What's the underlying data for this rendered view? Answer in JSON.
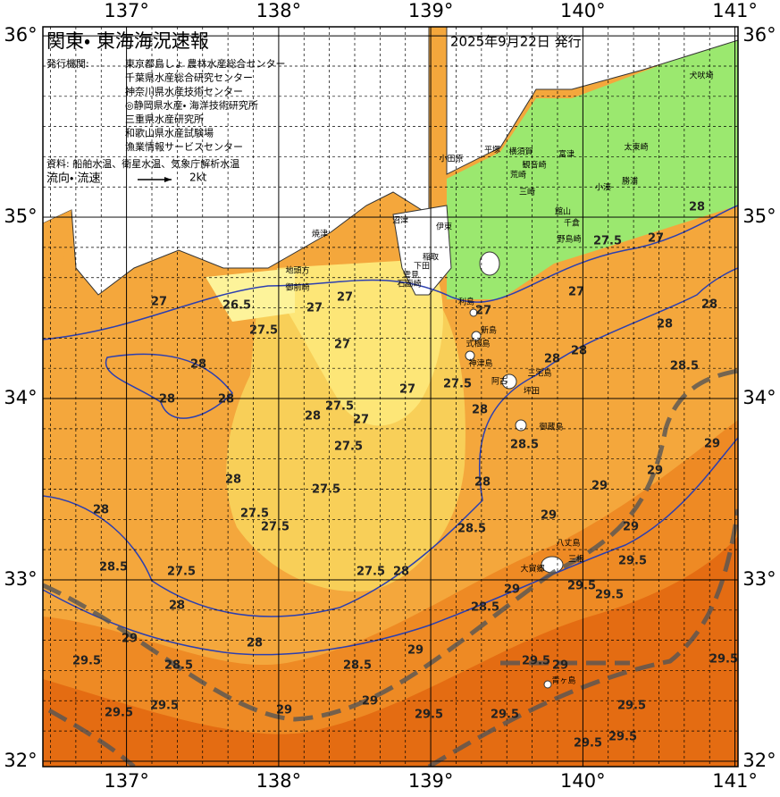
{
  "header": {
    "title": "関東・ 東海海況速報",
    "date": "2025年9月22日 発行",
    "issuer_label": "発行機関:",
    "issuers": [
      "東京都島しょ 農林水産総合センター",
      "千葉県水産総合研究センター",
      "神奈川県水産技術センター",
      "◎静岡県水産・ 海洋技術研究所",
      "三重県水産研究所",
      "和歌山県水産試験場",
      "漁業情報サービスセンター"
    ],
    "source": "資料: 船舶水温、衛星水温、気象庁解析水温",
    "flow_label": "流向・ 流速",
    "flow_scale": "2kt"
  },
  "axes": {
    "lon_range": [
      136.45,
      141.02
    ],
    "lat_range": [
      31.97,
      36.05
    ],
    "lon_ticks": [
      {
        "value": 137,
        "label": "137°"
      },
      {
        "value": 138,
        "label": "138°"
      },
      {
        "value": 139,
        "label": "139°"
      },
      {
        "value": 140,
        "label": "140°"
      },
      {
        "value": 141,
        "label": "141°"
      }
    ],
    "lat_ticks": [
      {
        "value": 32,
        "label": "32°"
      },
      {
        "value": 33,
        "label": "33°"
      },
      {
        "value": 34,
        "label": "34°"
      },
      {
        "value": 35,
        "label": "35°"
      },
      {
        "value": 36,
        "label": "36°"
      }
    ]
  },
  "places": [
    "小田原",
    "平塚",
    "横須賀",
    "観音崎",
    "荒崎",
    "三崎",
    "富津",
    "館山",
    "千倉",
    "野島崎",
    "小湊",
    "勝浦",
    "太東崎",
    "犬吠埼",
    "焼津",
    "沼津",
    "伊東",
    "稲取",
    "下田",
    "雲見",
    "石廊崎",
    "地頭方",
    "御前崎",
    "利島",
    "新島",
    "式根島",
    "神津島",
    "三宅島",
    "阿古",
    "坪田",
    "御蔵島",
    "八丈島",
    "三根",
    "大賀郷",
    "青ヶ島"
  ],
  "contour_labels": [
    26.5,
    27,
    27.5,
    27,
    27,
    27,
    28,
    28,
    28,
    27.5,
    27,
    27.5,
    28,
    27,
    27.5,
    28,
    27,
    27,
    28,
    28,
    27.5,
    27,
    28,
    28,
    28,
    28.5,
    28.5,
    28,
    29,
    29,
    29,
    28.5,
    29,
    29,
    29.5,
    29,
    29.5,
    29.5,
    28,
    28,
    27.5,
    27.5,
    27.5,
    28.5,
    27.5,
    28,
    28,
    27.5,
    28.5,
    29,
    29,
    28.5,
    28.5,
    28,
    29.5,
    29.5,
    29.5,
    29,
    29,
    29.5,
    29.5,
    29.5,
    29,
    29.5,
    29.5,
    29.5,
    29.5
  ]
}
